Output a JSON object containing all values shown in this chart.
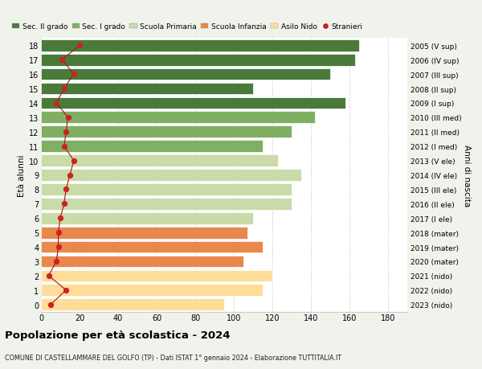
{
  "ages": [
    0,
    1,
    2,
    3,
    4,
    5,
    6,
    7,
    8,
    9,
    10,
    11,
    12,
    13,
    14,
    15,
    16,
    17,
    18
  ],
  "bar_values": [
    95,
    115,
    120,
    105,
    115,
    107,
    110,
    130,
    130,
    135,
    123,
    115,
    130,
    142,
    158,
    110,
    150,
    163,
    165
  ],
  "stranieri": [
    5,
    13,
    4,
    8,
    9,
    9,
    10,
    12,
    13,
    15,
    17,
    12,
    13,
    14,
    8,
    12,
    17,
    11,
    20
  ],
  "bar_colors": [
    "#FFDD99",
    "#FFDD99",
    "#FFDD99",
    "#E8884A",
    "#E8884A",
    "#E8884A",
    "#C8DBA8",
    "#C8DBA8",
    "#C8DBA8",
    "#C8DBA8",
    "#C8DBA8",
    "#7FAF60",
    "#7FAF60",
    "#7FAF60",
    "#4A7A3A",
    "#4A7A3A",
    "#4A7A3A",
    "#4A7A3A",
    "#4A7A3A"
  ],
  "right_labels": [
    "2023 (nido)",
    "2022 (nido)",
    "2021 (nido)",
    "2020 (mater)",
    "2019 (mater)",
    "2018 (mater)",
    "2017 (I ele)",
    "2016 (II ele)",
    "2015 (III ele)",
    "2014 (IV ele)",
    "2013 (V ele)",
    "2012 (I med)",
    "2011 (II med)",
    "2010 (III med)",
    "2009 (I sup)",
    "2008 (II sup)",
    "2007 (III sup)",
    "2006 (IV sup)",
    "2005 (V sup)"
  ],
  "legend_labels": [
    "Sec. II grado",
    "Sec. I grado",
    "Scuola Primaria",
    "Scuola Infanzia",
    "Asilo Nido",
    "Stranieri"
  ],
  "legend_colors": [
    "#4A7A3A",
    "#7FAF60",
    "#C8DBA8",
    "#E8884A",
    "#FFDD99",
    "#CC2222"
  ],
  "ylabel": "Età alunni",
  "ylabel2": "Anni di nascita",
  "title": "Popolazione per età scolastica - 2024",
  "subtitle": "COMUNE DI CASTELLAMMARE DEL GOLFO (TP) - Dati ISTAT 1° gennaio 2024 - Elaborazione TUTTITALIA.IT",
  "xlim": [
    0,
    190
  ],
  "xticks": [
    0,
    20,
    40,
    60,
    80,
    100,
    120,
    140,
    160,
    180
  ],
  "bg_color": "#F0F2EC",
  "plot_bg": "#FFFFFF",
  "stranieri_color": "#CC2222",
  "stranieri_line_color": "#AA1111"
}
